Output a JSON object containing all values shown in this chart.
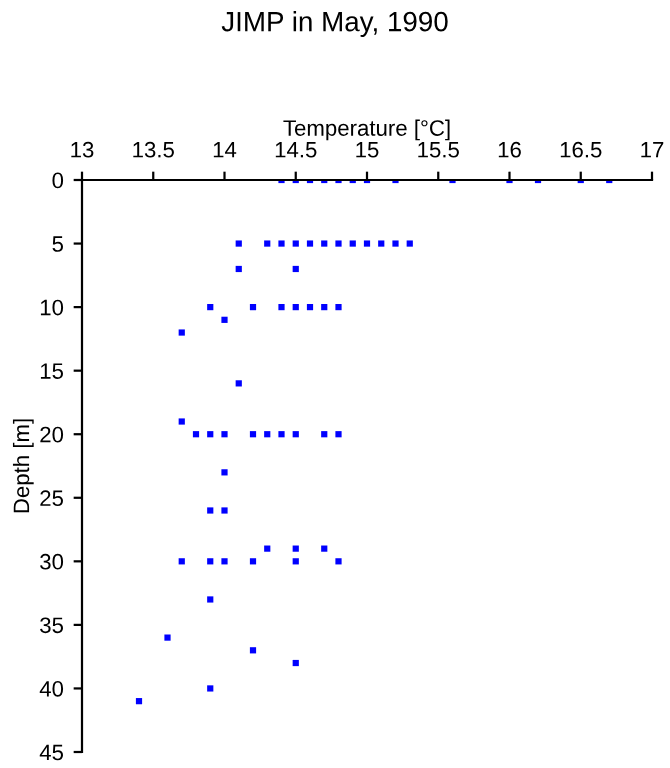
{
  "chart_data": {
    "type": "scatter",
    "title": "JIMP in May, 1990",
    "xlabel": "Temperature [°C]",
    "ylabel": "Depth [m]",
    "marker": "square",
    "grid": false,
    "x": [
      14.4,
      14.5,
      14.6,
      14.7,
      14.8,
      14.9,
      15.0,
      15.2,
      15.6,
      16.0,
      16.2,
      16.5,
      16.7,
      14.1,
      14.3,
      14.4,
      14.5,
      14.6,
      14.7,
      14.8,
      14.9,
      15.0,
      15.1,
      15.2,
      15.3,
      14.1,
      14.5,
      13.9,
      14.2,
      14.4,
      14.5,
      14.6,
      14.7,
      14.8,
      14.0,
      13.7,
      14.1,
      13.7,
      13.8,
      13.9,
      14.0,
      14.2,
      14.3,
      14.4,
      14.5,
      14.7,
      14.8,
      14.0,
      13.9,
      14.0,
      14.3,
      14.5,
      14.7,
      13.7,
      13.9,
      14.0,
      14.2,
      14.5,
      14.8,
      13.9,
      13.6,
      14.2,
      14.5,
      13.9,
      13.4
    ],
    "series": [
      {
        "color": "#0000ff",
        "values": [
          0,
          0,
          0,
          0,
          0,
          0,
          0,
          0,
          0,
          0,
          0,
          0,
          0,
          5,
          5,
          5,
          5,
          5,
          5,
          5,
          5,
          5,
          5,
          5,
          5,
          7,
          7,
          10,
          10,
          10,
          10,
          10,
          10,
          10,
          11,
          12,
          16,
          19,
          20,
          20,
          20,
          20,
          20,
          20,
          20,
          20,
          20,
          23,
          26,
          26,
          29,
          29,
          29,
          30,
          30,
          30,
          30,
          30,
          30,
          33,
          36,
          37,
          38,
          40,
          41
        ]
      }
    ],
    "xlim": [
      13,
      17
    ],
    "xticks": [
      13,
      13.5,
      14,
      14.5,
      15,
      15.5,
      16,
      16.5,
      17
    ],
    "ylim": [
      45,
      0
    ],
    "yticks": [
      0,
      5,
      10,
      15,
      20,
      25,
      30,
      35,
      40,
      45
    ]
  }
}
